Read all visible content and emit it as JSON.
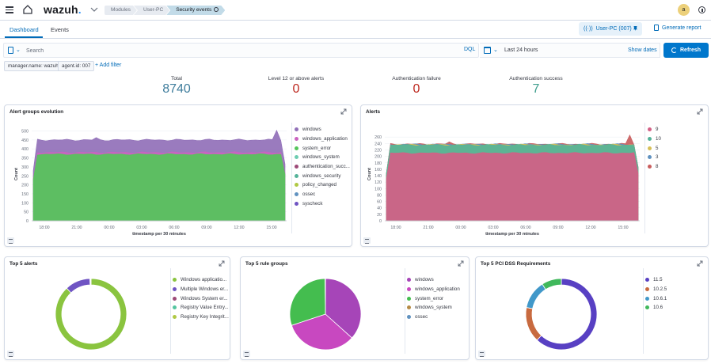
{
  "app": {
    "logo_text": "wazuh",
    "logo_dot": ".",
    "breadcrumbs": [
      "Modules",
      "User-PC",
      "Security events"
    ],
    "avatar_initial": "a"
  },
  "tabs": {
    "dashboard": "Dashboard",
    "events": "Events"
  },
  "agent_button": {
    "icon": "((·))",
    "label": "User-PC (007)"
  },
  "generate_report_label": "Generate report",
  "search": {
    "placeholder": "Search",
    "language": "DQL",
    "date_range": "Last 24 hours",
    "show_dates": "Show dates",
    "refresh": "Refresh"
  },
  "filters": [
    "manager.name: wazuh",
    "agent.id: 007"
  ],
  "add_filter": "+ Add filter",
  "stats": [
    {
      "label": "Total",
      "value": "8740",
      "color": "#3f7d9c"
    },
    {
      "label": "Level 12 or above alerts",
      "value": "0",
      "color": "#bd271e"
    },
    {
      "label": "Authentication failure",
      "value": "0",
      "color": "#bd271e"
    },
    {
      "label": "Authentication success",
      "value": "7",
      "color": "#3d9d8c"
    }
  ],
  "panels": {
    "alert_groups_title": "Alert groups evolution",
    "alerts_title": "Alerts",
    "top5_alerts_title": "Top 5 alerts",
    "top5_rule_groups_title": "Top 5 rule groups",
    "top5_pci_title": "Top 5 PCI DSS Requirements"
  },
  "chart_data": [
    {
      "type": "area",
      "title": "Alert groups evolution",
      "xlabel": "timestamp per 30 minutes",
      "ylabel": "Count",
      "x_ticks": [
        "18:00",
        "21:00",
        "00:00",
        "03:00",
        "06:00",
        "09:00",
        "12:00",
        "15:00"
      ],
      "y_ticks": [
        0,
        50,
        100,
        150,
        200,
        250,
        300,
        350,
        400,
        450,
        500
      ],
      "ylim": [
        0,
        520
      ],
      "stacked": true,
      "legend_position": "right",
      "series": [
        {
          "name": "windows",
          "color": "#9170b8",
          "values_approx_top": 450
        },
        {
          "name": "windows_application",
          "color": "#ca64c0",
          "values_approx_top": 380
        },
        {
          "name": "system_error",
          "color": "#54c55a",
          "values_approx_top": 370
        },
        {
          "name": "windows_system",
          "color": "#6dccb1",
          "values_approx_top": 10
        },
        {
          "name": "authentication_succ...",
          "color": "#9d4a78",
          "values_approx_top": 5
        },
        {
          "name": "windows_security",
          "color": "#54b399",
          "values_approx_top": 5
        },
        {
          "name": "policy_changed",
          "color": "#b0c944",
          "values_approx_top": 2
        },
        {
          "name": "ossec",
          "color": "#6092c0",
          "values_approx_top": 2
        },
        {
          "name": "syscheck",
          "color": "#6f54c3",
          "values_approx_top": 2
        }
      ]
    },
    {
      "type": "area",
      "title": "Alerts",
      "xlabel": "timestamp per 30 minutes",
      "ylabel": "Count",
      "x_ticks": [
        "18:00",
        "21:00",
        "00:00",
        "03:00",
        "06:00",
        "09:00",
        "12:00",
        "15:00"
      ],
      "y_ticks": [
        0,
        20,
        40,
        60,
        80,
        100,
        120,
        140,
        160,
        180,
        200,
        220,
        240,
        260
      ],
      "ylim": [
        0,
        290
      ],
      "stacked": true,
      "legend_position": "right",
      "series": [
        {
          "name": "9",
          "color": "#d36086",
          "values_approx_top": 210
        },
        {
          "name": "10",
          "color": "#54b399",
          "values_approx_top": 235
        },
        {
          "name": "5",
          "color": "#d6bf57",
          "values_approx_top": 236
        },
        {
          "name": "3",
          "color": "#6092c0",
          "values_approx_top": 237
        },
        {
          "name": "8",
          "color": "#c95e5e",
          "values_approx_top": 238
        }
      ]
    },
    {
      "type": "pie",
      "title": "Top 5 alerts",
      "donut": true,
      "legend_position": "right",
      "labels": [
        "Windows applicatio...",
        "Multiple Windows er...",
        "Windows System er...",
        "Registry Value Entry...",
        "Registry Key Integrit..."
      ],
      "values": [
        88,
        11.5,
        0.3,
        0.1,
        0.1
      ],
      "colors": [
        "#8ac43f",
        "#6f54c3",
        "#9d4a78",
        "#54c5a0",
        "#b0c944"
      ]
    },
    {
      "type": "pie",
      "title": "Top 5 rule groups",
      "donut": false,
      "legend_position": "right",
      "labels": [
        "windows",
        "windows_application",
        "system_error",
        "windows_system",
        "ossec"
      ],
      "values": [
        36.7,
        33.3,
        30.0,
        0.1,
        0.05
      ],
      "colors": [
        "#a645b8",
        "#c848c0",
        "#44bd4f",
        "#b58b45",
        "#6092c0"
      ]
    },
    {
      "type": "pie",
      "title": "Top 5 PCI DSS Requirements",
      "donut": true,
      "legend_position": "right",
      "labels": [
        "11.5",
        "10.2.5",
        "10.6.1",
        "10.6"
      ],
      "values": [
        62,
        16,
        13,
        9
      ],
      "colors": [
        "#5840c3",
        "#c86a3f",
        "#4198c9",
        "#40b85c"
      ]
    }
  ]
}
